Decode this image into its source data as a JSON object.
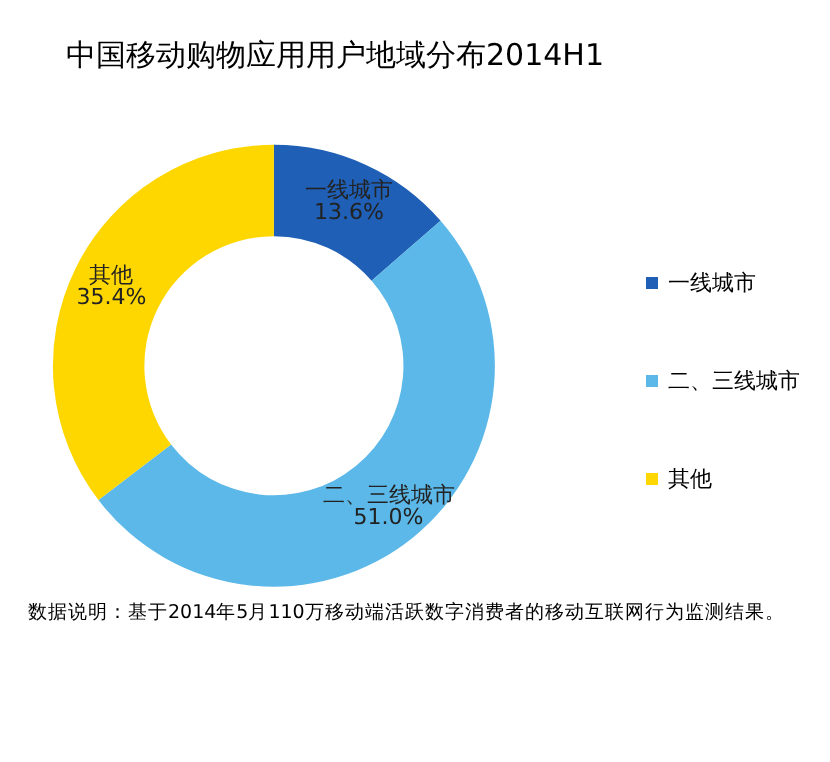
{
  "chart_data": {
    "type": "donut",
    "title": "中国移动购物应用用户地域分布2014H1",
    "categories": [
      "一线城市",
      "二、三线城市",
      "其他"
    ],
    "values": [
      13.6,
      51.0,
      35.4
    ],
    "value_labels": [
      "13.6%",
      "51.0%",
      "35.4%"
    ],
    "colors": [
      "#1f5fb5",
      "#5bb8e8",
      "#ffd700"
    ],
    "legend": "right",
    "annotations": [
      "数据说明：基于2014年5月110万移动端活跃数字消费者的移动互联网行为监测结果。"
    ]
  }
}
